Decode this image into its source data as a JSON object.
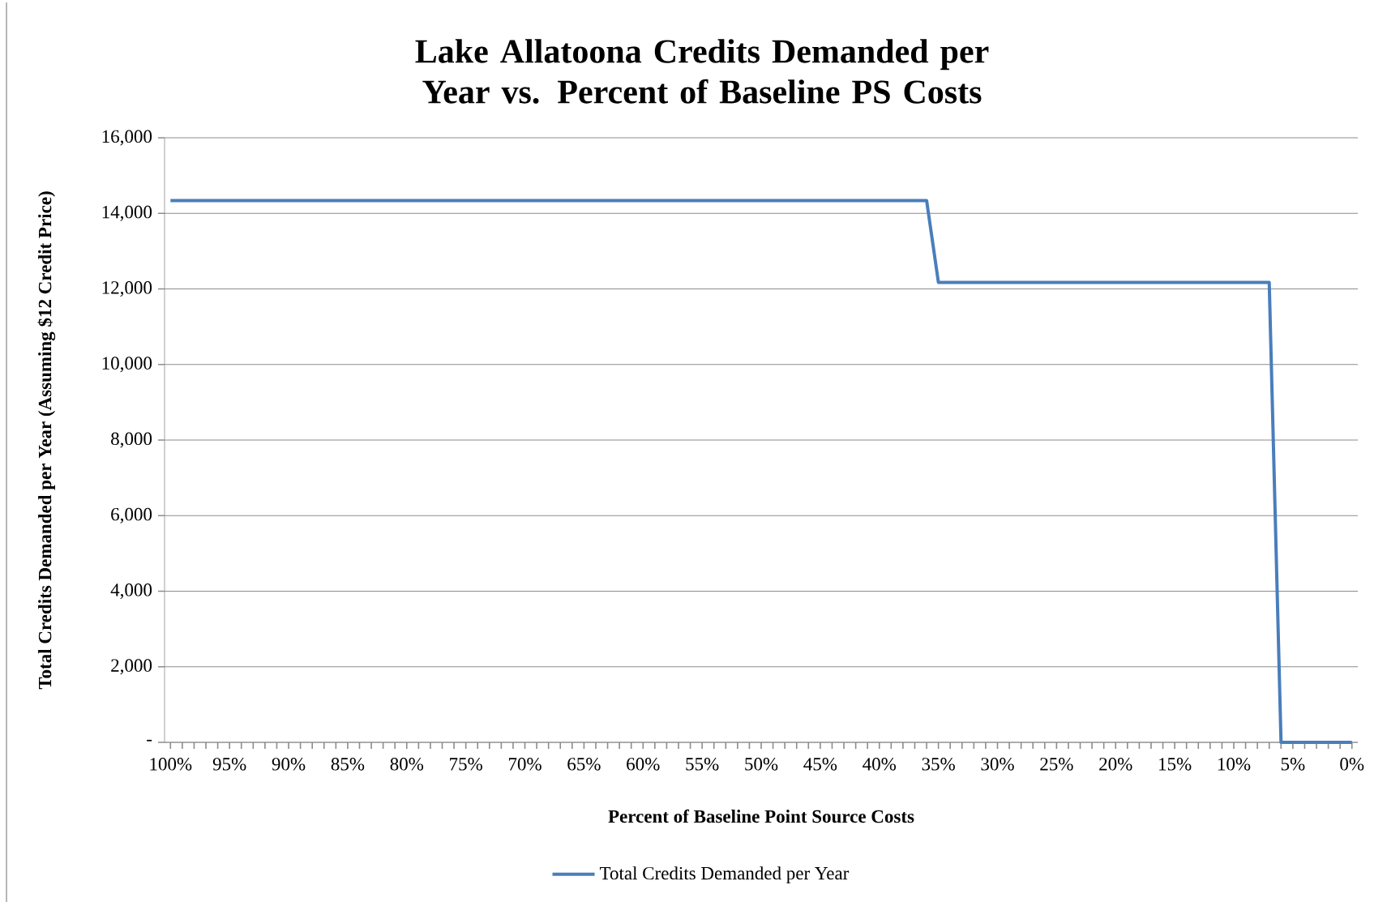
{
  "chart_data": {
    "type": "line",
    "title": "Lake Allatoona Credits Demanded per Year vs. Percent of Baseline PS Costs",
    "xlabel": "Percent of Baseline Point Source Costs",
    "ylabel": "Total Credits Demanded per Year (Assuming $12 Credit Price)",
    "categories": [
      "100%",
      null,
      null,
      null,
      null,
      "95%",
      null,
      null,
      null,
      null,
      "90%",
      null,
      null,
      null,
      null,
      "85%",
      null,
      null,
      null,
      null,
      "80%",
      null,
      null,
      null,
      null,
      "75%",
      null,
      null,
      null,
      null,
      "70%",
      null,
      null,
      null,
      null,
      "65%",
      null,
      null,
      null,
      null,
      "60%",
      null,
      null,
      null,
      null,
      "55%",
      null,
      null,
      null,
      null,
      "50%",
      null,
      null,
      null,
      null,
      "45%",
      null,
      null,
      null,
      null,
      "40%",
      null,
      null,
      null,
      null,
      "35%",
      null,
      null,
      null,
      null,
      "30%",
      null,
      null,
      null,
      null,
      "25%",
      null,
      null,
      null,
      null,
      "20%",
      null,
      null,
      null,
      null,
      "15%",
      null,
      null,
      null,
      null,
      "10%",
      null,
      null,
      null,
      null,
      "5%",
      null,
      null,
      null,
      null,
      "0%"
    ],
    "series": [
      {
        "name": "Total Credits Demanded per Year",
        "color": "#4a7ebb",
        "values": [
          14340,
          14340,
          14340,
          14340,
          14340,
          14340,
          14340,
          14340,
          14340,
          14340,
          14340,
          14340,
          14340,
          14340,
          14340,
          14340,
          14340,
          14340,
          14340,
          14340,
          14340,
          14340,
          14340,
          14340,
          14340,
          14340,
          14340,
          14340,
          14340,
          14340,
          14340,
          14340,
          14340,
          14340,
          14340,
          14340,
          14340,
          14340,
          14340,
          14340,
          14340,
          14340,
          14340,
          14340,
          14340,
          14340,
          14340,
          14340,
          14340,
          14340,
          14340,
          14340,
          14340,
          14340,
          14340,
          14340,
          14340,
          14340,
          14340,
          14340,
          14340,
          14340,
          14340,
          14340,
          14340,
          12170,
          12170,
          12170,
          12170,
          12170,
          12170,
          12170,
          12170,
          12170,
          12170,
          12170,
          12170,
          12170,
          12170,
          12170,
          12170,
          12170,
          12170,
          12170,
          12170,
          12170,
          12170,
          12170,
          12170,
          12170,
          12170,
          12170,
          12170,
          12170,
          0,
          0,
          0,
          0,
          0,
          0,
          0
        ]
      }
    ],
    "ylim": [
      0,
      16000
    ],
    "yticks": [
      {
        "value": 0,
        "label": "-"
      },
      {
        "value": 2000,
        "label": "2,000"
      },
      {
        "value": 4000,
        "label": "4,000"
      },
      {
        "value": 6000,
        "label": "6,000"
      },
      {
        "value": 8000,
        "label": "8,000"
      },
      {
        "value": 10000,
        "label": "10,000"
      },
      {
        "value": 12000,
        "label": "12,000"
      },
      {
        "value": 14000,
        "label": "14,000"
      },
      {
        "value": 16000,
        "label": "16,000"
      }
    ],
    "grid": "y",
    "legend": "bottom",
    "line_style": "solid",
    "marker": "none"
  }
}
